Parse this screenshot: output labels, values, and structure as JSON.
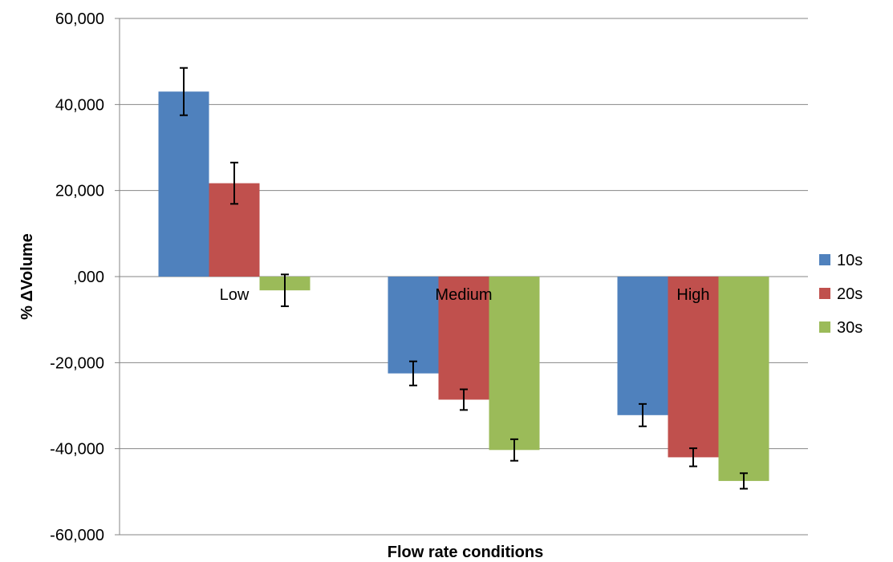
{
  "chart_data": {
    "type": "bar",
    "title": "",
    "xlabel": "Flow rate conditions",
    "ylabel": "% ΔVolume",
    "categories": [
      "Low",
      "Medium",
      "High"
    ],
    "series": [
      {
        "name": "10s",
        "color": "#4F81BD",
        "values": [
          43000,
          -22500,
          -32200
        ],
        "errors": [
          5500,
          2800,
          2600
        ]
      },
      {
        "name": "20s",
        "color": "#C0504D",
        "values": [
          21700,
          -28600,
          -42000
        ],
        "errors": [
          4800,
          2400,
          2100
        ]
      },
      {
        "name": "30s",
        "color": "#9BBB59",
        "values": [
          -3200,
          -40300,
          -47500
        ],
        "errors": [
          3700,
          2500,
          1800
        ]
      }
    ],
    "ylim": [
      -60000,
      60000
    ],
    "yticks": [
      60000,
      40000,
      20000,
      0,
      -20000,
      -40000,
      -60000
    ],
    "ytick_labels": [
      "60,000",
      "40,000",
      "20,000",
      ",000",
      "-20,000",
      "-40,000",
      "-60,000"
    ],
    "grid": true,
    "legend": "right"
  }
}
